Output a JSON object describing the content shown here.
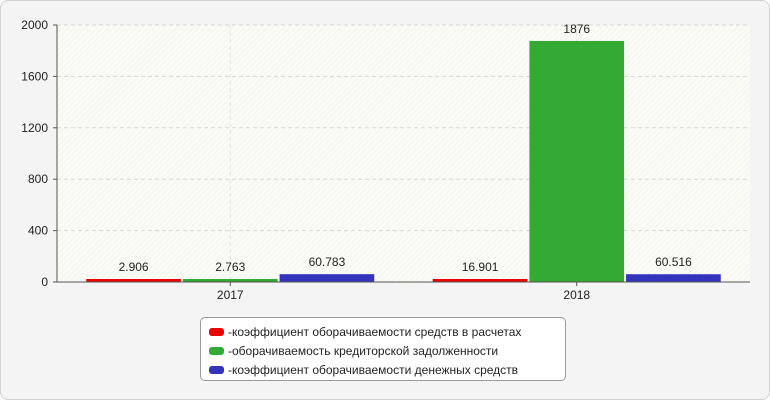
{
  "chart_data": {
    "type": "bar",
    "categories": [
      "2017",
      "2018"
    ],
    "series": [
      {
        "name": "коэффициент оборачиваемости средств в расчетах",
        "color": "#ef0000",
        "values": [
          2.906,
          16.901
        ],
        "labels": [
          "2.906",
          "16.901"
        ]
      },
      {
        "name": "оборачиваемость кредиторской задолженности",
        "color": "#33aa33",
        "values": [
          2.763,
          1876
        ],
        "labels": [
          "2.763",
          "1876"
        ]
      },
      {
        "name": "коэффициент оборачиваемости денежных средств",
        "color": "#3333bb",
        "values": [
          60.783,
          60.516
        ],
        "labels": [
          "60.783",
          "60.516"
        ]
      }
    ],
    "ylim": [
      0,
      2000
    ],
    "yticks": [
      0,
      400,
      800,
      1200,
      1600,
      2000
    ],
    "grid": true,
    "legend_position": "bottom-center",
    "legend_prefix": "- "
  }
}
